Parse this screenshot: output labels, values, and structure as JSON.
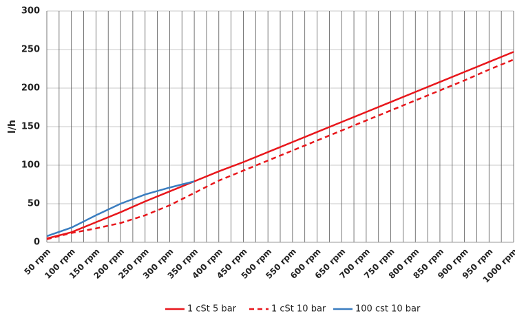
{
  "chart_data": {
    "type": "line",
    "y_label": "l/h",
    "categories": [
      "50 rpm",
      "100 rpm",
      "150 rpm",
      "200 rpm",
      "250 rpm",
      "300 rpm",
      "350 rpm",
      "400 rpm",
      "450 rpm",
      "500 rpm",
      "550 rpm",
      "600 rpm",
      "650 rpm",
      "700 rpm",
      "750 rpm",
      "800 rpm",
      "850 rpm",
      "900 rpm",
      "950 rpm",
      "1000 rpm"
    ],
    "series": [
      {
        "name": "1 cSt 5 bar",
        "color": "#e8161b",
        "dashed": false,
        "values": [
          5,
          13,
          26,
          39,
          53,
          66,
          79,
          92,
          104,
          117,
          130,
          143,
          156,
          169,
          182,
          195,
          208,
          221,
          234,
          247
        ]
      },
      {
        "name": "1 cSt 10 bar",
        "color": "#e8161b",
        "dashed": true,
        "values": [
          4,
          12,
          18,
          25,
          35,
          48,
          64,
          80,
          93,
          106,
          119,
          132,
          145,
          158,
          171,
          184,
          197,
          210,
          224,
          237
        ]
      },
      {
        "name": "100 cst 10 bar",
        "color": "#3a7dc0",
        "dashed": false,
        "values": [
          8,
          19,
          35,
          50,
          62,
          71,
          79,
          null,
          null,
          null,
          null,
          null,
          null,
          null,
          null,
          null,
          null,
          null,
          null,
          null
        ]
      }
    ],
    "ylim": [
      0,
      300
    ],
    "yticks": [
      0,
      50,
      100,
      150,
      200,
      250,
      300
    ],
    "grid": true
  }
}
